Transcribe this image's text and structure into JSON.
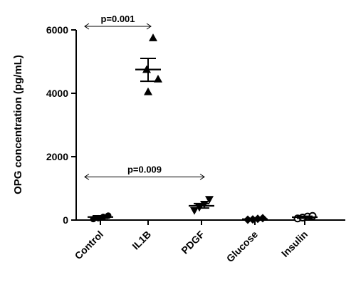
{
  "chart_data": {
    "type": "scatter",
    "ylabel": "OPG concentration (pg/mL)",
    "ylim": [
      0,
      6000
    ],
    "yticks": [
      0,
      2000,
      4000,
      6000
    ],
    "categories": [
      "Control",
      "IL1B",
      "PDGF",
      "Glucose",
      "Insulin"
    ],
    "groups": [
      {
        "category": "Control",
        "marker": "circle",
        "points": [
          30,
          60,
          100,
          140
        ],
        "mean": 95,
        "sem_low": 55,
        "sem_high": 135
      },
      {
        "category": "IL1B",
        "marker": "triangle-up",
        "points": [
          4050,
          4450,
          4750,
          5750
        ],
        "mean": 4750,
        "sem_low": 4380,
        "sem_high": 5100
      },
      {
        "category": "PDGF",
        "marker": "triangle-down",
        "points": [
          300,
          400,
          500,
          650
        ],
        "mean": 450,
        "sem_low": 380,
        "sem_high": 520
      },
      {
        "category": "Glucose",
        "marker": "diamond",
        "points": [
          10,
          20,
          40,
          60
        ],
        "mean": 30,
        "sem_low": 15,
        "sem_high": 45
      },
      {
        "category": "Insulin",
        "marker": "circle-open",
        "points": [
          50,
          80,
          110,
          130
        ],
        "mean": 90,
        "sem_low": 60,
        "sem_high": 120
      }
    ],
    "annotations": [
      {
        "text": "p=0.001",
        "from": "Control",
        "to": "IL1B",
        "y": 6000
      },
      {
        "text": "p=0.009",
        "from": "Control",
        "to": "PDGF",
        "y": 1250
      }
    ],
    "grid": false,
    "legend": "none"
  }
}
